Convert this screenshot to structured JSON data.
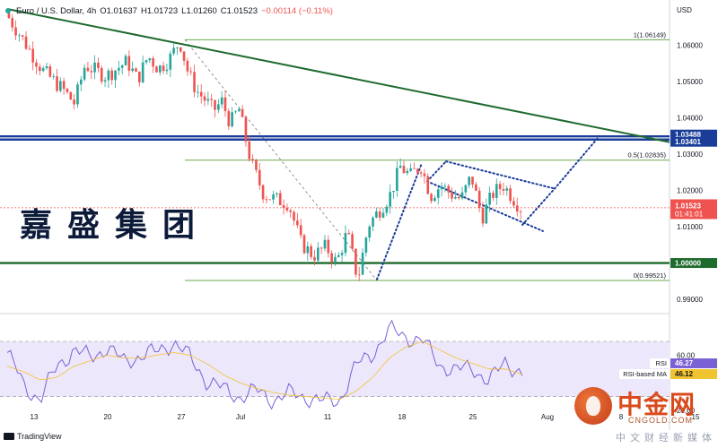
{
  "header": {
    "symbol": "Euro / U.S. Dollar, 4h",
    "open": "O1.01637",
    "high": "H1.01723",
    "low": "L1.01260",
    "close": "C1.01523",
    "change": "−0.00114 (−0.11%)"
  },
  "watermark": "嘉盛集团",
  "footer": {
    "brand": "TradingView"
  },
  "logo": {
    "name": "中金网",
    "domain": "CNGOLD.COM",
    "tagline": "中文财经新媒体"
  },
  "colors": {
    "up": "#26a69a",
    "down": "#ef5350",
    "trendline": "#1e6b2e",
    "fib": "#6aa84f",
    "channel": "#1a3d99",
    "rsi_line": "#7b61d6",
    "rsi_ma": "#f0c330",
    "rsi_band": "#ede7fb"
  },
  "chart_data": [
    {
      "type": "candlestick",
      "symbol": "EUR/USD",
      "timeframe": "4h",
      "currency_label": "USD",
      "x_tick_labels": [
        "13",
        "20",
        "27",
        "Jul",
        "11",
        "18",
        "25",
        "Aug",
        "8",
        "15"
      ],
      "y_tick_labels": [
        "1.06000",
        "1.05000",
        "1.04000",
        "1.03000",
        "1.02000",
        "1.01000",
        "0.99000"
      ],
      "ylim": [
        0.9873,
        1.069
      ],
      "last_price": "1.01523",
      "countdown": "01:41:01",
      "close_path": [
        [
          "13",
          1.069
        ],
        [
          "14",
          1.053
        ],
        [
          "16",
          1.0475
        ],
        [
          "17",
          1.044
        ],
        [
          "18",
          1.0545
        ],
        [
          "20",
          1.0515
        ],
        [
          "22",
          1.0555
        ],
        [
          "23",
          1.0505
        ],
        [
          "24",
          1.057
        ],
        [
          "25",
          1.0535
        ],
        [
          "26",
          1.056
        ],
        [
          "27",
          1.0612
        ],
        [
          "28",
          1.0525
        ],
        [
          "29",
          1.0475
        ],
        [
          "30",
          1.045
        ],
        [
          "Jul 1",
          1.042
        ],
        [
          "Jul 2",
          1.0445
        ],
        [
          "Jul 3",
          1.0385
        ],
        [
          "Jul 4",
          1.0425
        ],
        [
          "Jul 5",
          1.0275
        ],
        [
          "Jul 6",
          1.019
        ],
        [
          "Jul 7",
          1.0175
        ],
        [
          "Jul 8",
          1.0165
        ],
        [
          "Jul 9",
          1.0055
        ],
        [
          "Jul 10",
          1.002
        ],
        [
          "Jul 11",
          1.0045
        ],
        [
          "Jul 12",
          1.0
        ],
        [
          "Jul 13",
          1.0085
        ],
        [
          "Jul 14",
          0.9955
        ],
        [
          "Jul 15",
          1.0105
        ],
        [
          "Jul 17",
          1.0185
        ],
        [
          "Jul 18",
          1.0265
        ],
        [
          "Jul 19",
          1.024
        ],
        [
          "Jul 20",
          1.027
        ],
        [
          "Jul 21",
          1.0185
        ],
        [
          "Jul 22",
          1.0215
        ],
        [
          "Jul 23",
          1.019
        ],
        [
          "Jul 24",
          1.0175
        ],
        [
          "Jul 25",
          1.024
        ],
        [
          "Jul 26",
          1.0125
        ],
        [
          "Jul 27",
          1.019
        ],
        [
          "Jul 28",
          1.0215
        ],
        [
          "Jul 29",
          1.0152
        ]
      ],
      "fibonacci": [
        {
          "label": "1(1.06149)",
          "value": 1.06149
        },
        {
          "label": "0.5(1.02835)",
          "value": 1.02835
        },
        {
          "label": "0(0.99521)",
          "value": 0.99521
        }
      ],
      "horizontal_levels": [
        {
          "label": "1.03488",
          "value": 1.03488
        },
        {
          "label": "1.03401",
          "value": 1.03401
        },
        {
          "label": "1.00000",
          "value": 1.0
        }
      ],
      "descending_trendline": [
        [
          "13",
          1.0695
        ],
        [
          "Jul 30",
          1.0338
        ]
      ],
      "channel": {
        "upper": [
          [
            "Jul 20",
            1.028
          ],
          [
            "Jul 30",
            1.02
          ]
        ],
        "lower": [
          [
            "Jul 18",
            1.024
          ],
          [
            "Jul 30",
            1.013
          ]
        ],
        "projection": [
          [
            "Jul 29",
            1.0135
          ],
          [
            "Aug 1",
            1.0345
          ]
        ]
      }
    },
    {
      "type": "line",
      "name": "RSI",
      "y_tick_labels": [
        "60.00",
        "20.00"
      ],
      "ylim": [
        20,
        85
      ],
      "bands": [
        30,
        70
      ],
      "series": [
        {
          "name": "RSI",
          "value_label": "46.27",
          "values": [
            62,
            38,
            28,
            52,
            64,
            58,
            66,
            55,
            60,
            62,
            70,
            58,
            42,
            35,
            30,
            34,
            28,
            32,
            30,
            26,
            28,
            52,
            62,
            78,
            74,
            70,
            54,
            48,
            52,
            40,
            56,
            46
          ]
        },
        {
          "name": "RSI-based MA",
          "value_label": "46.12",
          "values": [
            52,
            48,
            42,
            44,
            52,
            56,
            60,
            58,
            58,
            60,
            62,
            60,
            54,
            46,
            40,
            36,
            33,
            31,
            30,
            29,
            28,
            34,
            44,
            58,
            66,
            70,
            64,
            58,
            54,
            50,
            50,
            46
          ]
        }
      ]
    }
  ]
}
